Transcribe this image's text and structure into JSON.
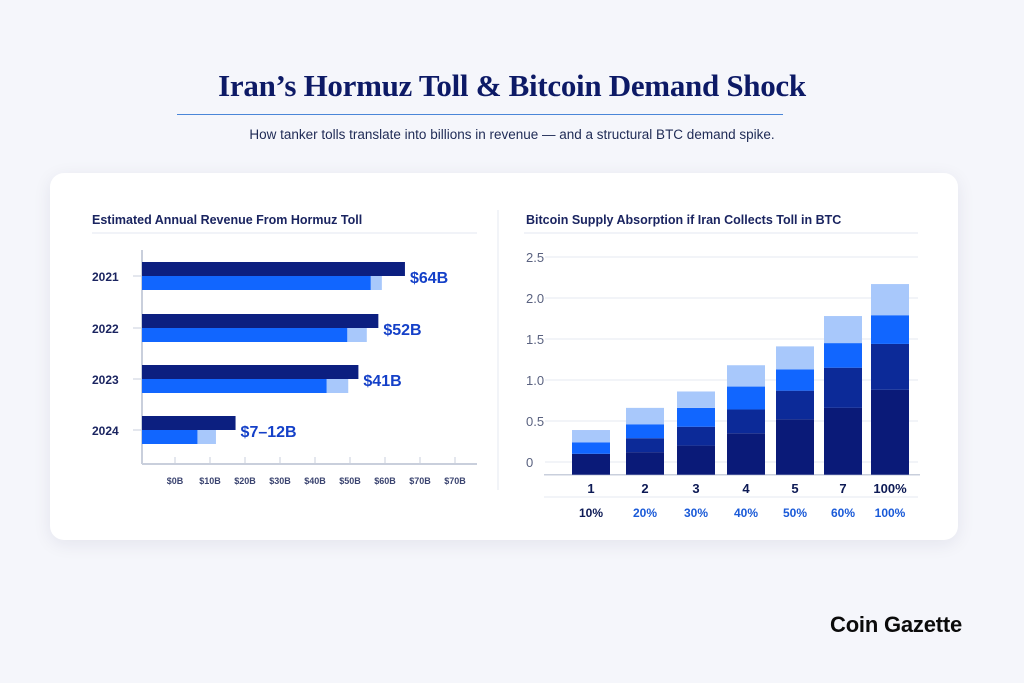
{
  "header": {
    "title": "Iran’s Hormuz Toll & Bitcoin Demand Shock",
    "subtitle": "How tanker tolls translate into billions in revenue — and a structural BTC demand spike."
  },
  "brand": "Coin Gazette",
  "colors": {
    "darkest": "#0a1a78",
    "dark": "#0c2a98",
    "bright": "#1166ff",
    "light": "#a8c8fb",
    "title": "#0d1a66"
  },
  "chart_data": [
    {
      "type": "bar",
      "orientation": "horizontal",
      "title": "Estimated Annual Revenue From Hormuz Toll",
      "categories": [
        "2021",
        "2022",
        "2023",
        "2024"
      ],
      "x_ticks": [
        "$0B",
        "$10B",
        "$20B",
        "$30B",
        "$40B",
        "$50B",
        "$60B",
        "$70B",
        "$70B"
      ],
      "xlim": [
        -9.5,
        80
      ],
      "data_labels": [
        "$64B",
        "$52B",
        "$41B",
        "$7–12B"
      ],
      "series": [
        {
          "values": [
            65.7,
            58.1,
            52.4,
            17.3
          ],
          "color": "#0c1f80"
        },
        {
          "values": [
            59.1,
            54.8,
            49.5,
            11.7
          ],
          "color": "#a8c8fb"
        },
        {
          "values": [
            55.9,
            49.2,
            43.3,
            6.4
          ],
          "color": "#1166ff"
        }
      ]
    },
    {
      "type": "bar",
      "stacked": true,
      "title": "Bitcoin Supply Absorption if Iran Collects Toll in BTC",
      "categories": [
        "1",
        "2",
        "3",
        "4",
        "5",
        "7",
        "100%"
      ],
      "secondary_labels": [
        "10%",
        "20%",
        "30%",
        "40%",
        "50%",
        "60%",
        "100%"
      ],
      "y_ticks": [
        "0",
        "0.5",
        "1.0",
        "1.5",
        "2.0",
        "2.5"
      ],
      "ylim": [
        -0.155,
        2.6
      ],
      "stack_tops": [
        [
          0.1,
          0.1,
          0.24,
          0.39
        ],
        [
          0.12,
          0.29,
          0.46,
          0.66
        ],
        [
          0.2,
          0.43,
          0.66,
          0.86
        ],
        [
          0.35,
          0.64,
          0.92,
          1.18
        ],
        [
          0.52,
          0.87,
          1.13,
          1.41
        ],
        [
          0.66,
          1.15,
          1.45,
          1.78
        ],
        [
          0.88,
          1.44,
          1.79,
          2.17
        ]
      ],
      "segment_colors": [
        "#0a1a78",
        "#0c2a98",
        "#1166ff",
        "#a8c8fb"
      ]
    }
  ]
}
